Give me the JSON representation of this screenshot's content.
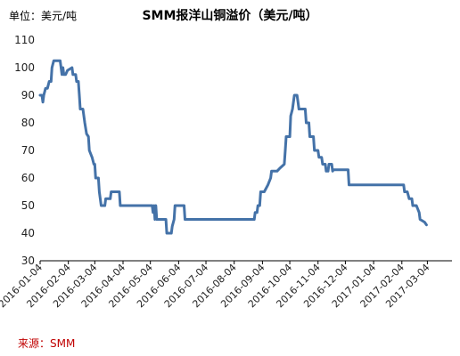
{
  "header": {
    "unit_label": "单位：美元/吨",
    "title": "SMM报洋山铜溢价（美元/吨）"
  },
  "footer": {
    "source_label": "来源：SMM"
  },
  "chart_data": {
    "type": "line",
    "title": "SMM报洋山铜溢价（美元/吨）",
    "xlabel": "",
    "ylabel": "",
    "ylim": [
      30,
      110
    ],
    "yticks": [
      30,
      40,
      50,
      60,
      70,
      80,
      90,
      100,
      110
    ],
    "xlim": [
      "2016-01-04",
      "2017-03-31"
    ],
    "xticks": [
      "2016-01-04",
      "2016-02-04",
      "2016-03-04",
      "2016-04-04",
      "2016-05-04",
      "2016-06-04",
      "2016-07-04",
      "2016-08-04",
      "2016-09-04",
      "2016-10-04",
      "2016-11-04",
      "2016-12-04",
      "2017-01-04",
      "2017-02-04",
      "2017-03-04"
    ],
    "grid": "none",
    "line_color": "#4472a8",
    "series": [
      {
        "name": "",
        "points": [
          [
            "2016-01-04",
            90
          ],
          [
            "2016-01-06",
            90
          ],
          [
            "2016-01-07",
            87.5
          ],
          [
            "2016-01-08",
            90
          ],
          [
            "2016-01-10",
            92.5
          ],
          [
            "2016-01-12",
            92.5
          ],
          [
            "2016-01-14",
            95
          ],
          [
            "2016-01-16",
            95
          ],
          [
            "2016-01-17",
            100
          ],
          [
            "2016-01-19",
            102.5
          ],
          [
            "2016-01-26",
            102.5
          ],
          [
            "2016-01-28",
            97.5
          ],
          [
            "2016-01-29",
            100
          ],
          [
            "2016-01-30",
            97.5
          ],
          [
            "2016-02-01",
            97.5
          ],
          [
            "2016-02-03",
            99
          ],
          [
            "2016-02-08",
            100
          ],
          [
            "2016-02-09",
            97.5
          ],
          [
            "2016-02-12",
            97.5
          ],
          [
            "2016-02-13",
            95
          ],
          [
            "2016-02-15",
            95
          ],
          [
            "2016-02-16",
            90
          ],
          [
            "2016-02-17",
            85
          ],
          [
            "2016-02-20",
            85
          ],
          [
            "2016-02-22",
            80
          ],
          [
            "2016-02-24",
            76
          ],
          [
            "2016-02-26",
            75
          ],
          [
            "2016-02-27",
            70
          ],
          [
            "2016-03-01",
            67.5
          ],
          [
            "2016-03-03",
            65
          ],
          [
            "2016-03-04",
            65
          ],
          [
            "2016-03-05",
            60
          ],
          [
            "2016-03-08",
            60
          ],
          [
            "2016-03-09",
            55
          ],
          [
            "2016-03-11",
            50
          ],
          [
            "2016-03-15",
            50
          ],
          [
            "2016-03-16",
            52.5
          ],
          [
            "2016-03-21",
            52.5
          ],
          [
            "2016-03-22",
            55
          ],
          [
            "2016-03-31",
            55
          ],
          [
            "2016-04-01",
            50
          ],
          [
            "2016-05-06",
            50
          ],
          [
            "2016-05-07",
            47.5
          ],
          [
            "2016-05-08",
            50
          ],
          [
            "2016-05-09",
            45
          ],
          [
            "2016-05-10",
            50
          ],
          [
            "2016-05-11",
            45
          ],
          [
            "2016-05-21",
            45
          ],
          [
            "2016-05-22",
            40
          ],
          [
            "2016-05-27",
            40
          ],
          [
            "2016-05-28",
            42.5
          ],
          [
            "2016-05-30",
            45
          ],
          [
            "2016-05-31",
            50
          ],
          [
            "2016-06-10",
            50
          ],
          [
            "2016-06-11",
            45
          ],
          [
            "2016-08-26",
            45
          ],
          [
            "2016-08-27",
            47.5
          ],
          [
            "2016-08-29",
            47.5
          ],
          [
            "2016-08-30",
            50
          ],
          [
            "2016-09-01",
            50
          ],
          [
            "2016-09-02",
            55
          ],
          [
            "2016-09-06",
            55
          ],
          [
            "2016-09-10",
            57.5
          ],
          [
            "2016-09-13",
            60
          ],
          [
            "2016-09-14",
            62.5
          ],
          [
            "2016-09-20",
            62.5
          ],
          [
            "2016-09-23",
            63.5
          ],
          [
            "2016-09-28",
            65
          ],
          [
            "2016-09-29",
            70
          ],
          [
            "2016-09-30",
            75
          ],
          [
            "2016-10-04",
            75
          ],
          [
            "2016-10-05",
            82.5
          ],
          [
            "2016-10-07",
            85
          ],
          [
            "2016-10-09",
            90
          ],
          [
            "2016-10-12",
            90
          ],
          [
            "2016-10-13",
            87.5
          ],
          [
            "2016-10-14",
            85
          ],
          [
            "2016-10-21",
            85
          ],
          [
            "2016-10-22",
            80
          ],
          [
            "2016-10-25",
            80
          ],
          [
            "2016-10-26",
            75
          ],
          [
            "2016-10-30",
            75
          ],
          [
            "2016-10-31",
            70
          ],
          [
            "2016-11-04",
            70
          ],
          [
            "2016-11-05",
            67.5
          ],
          [
            "2016-11-08",
            67.5
          ],
          [
            "2016-11-09",
            65
          ],
          [
            "2016-11-12",
            65
          ],
          [
            "2016-11-13",
            62.5
          ],
          [
            "2016-11-15",
            62.5
          ],
          [
            "2016-11-16",
            65
          ],
          [
            "2016-11-19",
            65
          ],
          [
            "2016-11-20",
            62.5
          ],
          [
            "2016-11-21",
            63
          ],
          [
            "2016-12-07",
            63
          ],
          [
            "2016-12-08",
            57.5
          ],
          [
            "2017-02-06",
            57.5
          ],
          [
            "2017-02-07",
            55
          ],
          [
            "2017-02-10",
            55
          ],
          [
            "2017-02-12",
            52.5
          ],
          [
            "2017-02-15",
            52.5
          ],
          [
            "2017-02-16",
            50
          ],
          [
            "2017-02-20",
            50
          ],
          [
            "2017-02-23",
            47.5
          ],
          [
            "2017-02-24",
            45
          ],
          [
            "2017-03-01",
            44
          ],
          [
            "2017-03-03",
            43
          ]
        ]
      }
    ]
  }
}
